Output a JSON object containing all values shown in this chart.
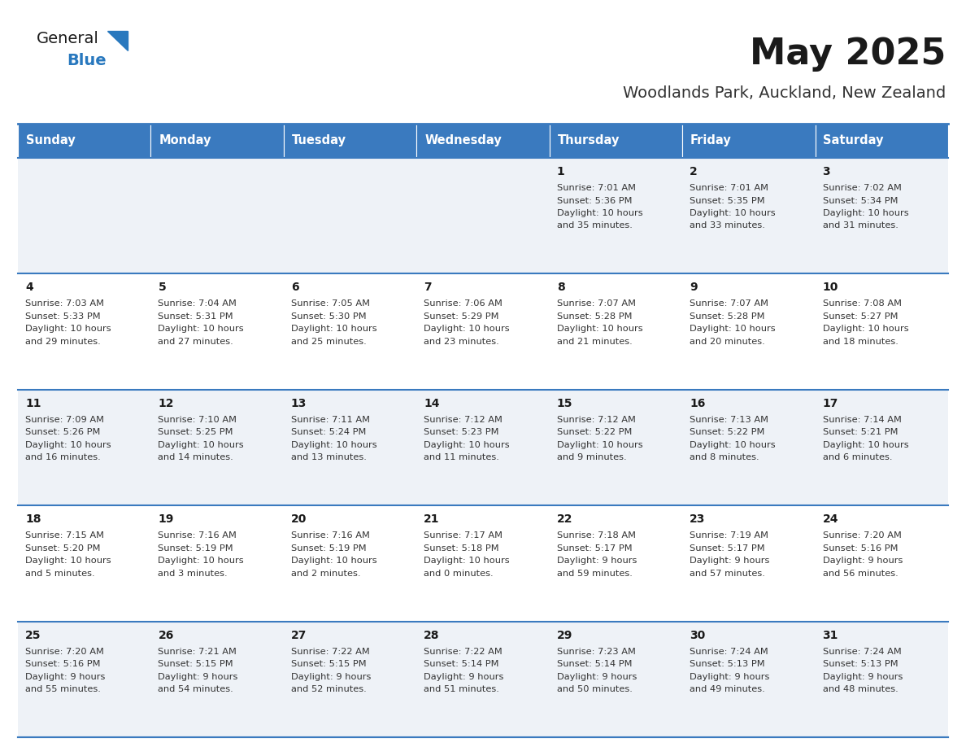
{
  "title": "May 2025",
  "subtitle": "Woodlands Park, Auckland, New Zealand",
  "header_bg": "#3a7abf",
  "header_text": "#ffffff",
  "cell_bg_even": "#eef2f7",
  "cell_bg_odd": "#ffffff",
  "row_line_color": "#3a7abf",
  "days_of_week": [
    "Sunday",
    "Monday",
    "Tuesday",
    "Wednesday",
    "Thursday",
    "Friday",
    "Saturday"
  ],
  "calendar": [
    [
      {
        "day": null,
        "sunrise": null,
        "sunset": null,
        "daylight": null
      },
      {
        "day": null,
        "sunrise": null,
        "sunset": null,
        "daylight": null
      },
      {
        "day": null,
        "sunrise": null,
        "sunset": null,
        "daylight": null
      },
      {
        "day": null,
        "sunrise": null,
        "sunset": null,
        "daylight": null
      },
      {
        "day": 1,
        "sunrise": "7:01 AM",
        "sunset": "5:36 PM",
        "daylight": "10 hours and 35 minutes."
      },
      {
        "day": 2,
        "sunrise": "7:01 AM",
        "sunset": "5:35 PM",
        "daylight": "10 hours and 33 minutes."
      },
      {
        "day": 3,
        "sunrise": "7:02 AM",
        "sunset": "5:34 PM",
        "daylight": "10 hours and 31 minutes."
      }
    ],
    [
      {
        "day": 4,
        "sunrise": "7:03 AM",
        "sunset": "5:33 PM",
        "daylight": "10 hours and 29 minutes."
      },
      {
        "day": 5,
        "sunrise": "7:04 AM",
        "sunset": "5:31 PM",
        "daylight": "10 hours and 27 minutes."
      },
      {
        "day": 6,
        "sunrise": "7:05 AM",
        "sunset": "5:30 PM",
        "daylight": "10 hours and 25 minutes."
      },
      {
        "day": 7,
        "sunrise": "7:06 AM",
        "sunset": "5:29 PM",
        "daylight": "10 hours and 23 minutes."
      },
      {
        "day": 8,
        "sunrise": "7:07 AM",
        "sunset": "5:28 PM",
        "daylight": "10 hours and 21 minutes."
      },
      {
        "day": 9,
        "sunrise": "7:07 AM",
        "sunset": "5:28 PM",
        "daylight": "10 hours and 20 minutes."
      },
      {
        "day": 10,
        "sunrise": "7:08 AM",
        "sunset": "5:27 PM",
        "daylight": "10 hours and 18 minutes."
      }
    ],
    [
      {
        "day": 11,
        "sunrise": "7:09 AM",
        "sunset": "5:26 PM",
        "daylight": "10 hours and 16 minutes."
      },
      {
        "day": 12,
        "sunrise": "7:10 AM",
        "sunset": "5:25 PM",
        "daylight": "10 hours and 14 minutes."
      },
      {
        "day": 13,
        "sunrise": "7:11 AM",
        "sunset": "5:24 PM",
        "daylight": "10 hours and 13 minutes."
      },
      {
        "day": 14,
        "sunrise": "7:12 AM",
        "sunset": "5:23 PM",
        "daylight": "10 hours and 11 minutes."
      },
      {
        "day": 15,
        "sunrise": "7:12 AM",
        "sunset": "5:22 PM",
        "daylight": "10 hours and 9 minutes."
      },
      {
        "day": 16,
        "sunrise": "7:13 AM",
        "sunset": "5:22 PM",
        "daylight": "10 hours and 8 minutes."
      },
      {
        "day": 17,
        "sunrise": "7:14 AM",
        "sunset": "5:21 PM",
        "daylight": "10 hours and 6 minutes."
      }
    ],
    [
      {
        "day": 18,
        "sunrise": "7:15 AM",
        "sunset": "5:20 PM",
        "daylight": "10 hours and 5 minutes."
      },
      {
        "day": 19,
        "sunrise": "7:16 AM",
        "sunset": "5:19 PM",
        "daylight": "10 hours and 3 minutes."
      },
      {
        "day": 20,
        "sunrise": "7:16 AM",
        "sunset": "5:19 PM",
        "daylight": "10 hours and 2 minutes."
      },
      {
        "day": 21,
        "sunrise": "7:17 AM",
        "sunset": "5:18 PM",
        "daylight": "10 hours and 0 minutes."
      },
      {
        "day": 22,
        "sunrise": "7:18 AM",
        "sunset": "5:17 PM",
        "daylight": "9 hours and 59 minutes."
      },
      {
        "day": 23,
        "sunrise": "7:19 AM",
        "sunset": "5:17 PM",
        "daylight": "9 hours and 57 minutes."
      },
      {
        "day": 24,
        "sunrise": "7:20 AM",
        "sunset": "5:16 PM",
        "daylight": "9 hours and 56 minutes."
      }
    ],
    [
      {
        "day": 25,
        "sunrise": "7:20 AM",
        "sunset": "5:16 PM",
        "daylight": "9 hours and 55 minutes."
      },
      {
        "day": 26,
        "sunrise": "7:21 AM",
        "sunset": "5:15 PM",
        "daylight": "9 hours and 54 minutes."
      },
      {
        "day": 27,
        "sunrise": "7:22 AM",
        "sunset": "5:15 PM",
        "daylight": "9 hours and 52 minutes."
      },
      {
        "day": 28,
        "sunrise": "7:22 AM",
        "sunset": "5:14 PM",
        "daylight": "9 hours and 51 minutes."
      },
      {
        "day": 29,
        "sunrise": "7:23 AM",
        "sunset": "5:14 PM",
        "daylight": "9 hours and 50 minutes."
      },
      {
        "day": 30,
        "sunrise": "7:24 AM",
        "sunset": "5:13 PM",
        "daylight": "9 hours and 49 minutes."
      },
      {
        "day": 31,
        "sunrise": "7:24 AM",
        "sunset": "5:13 PM",
        "daylight": "9 hours and 48 minutes."
      }
    ]
  ]
}
